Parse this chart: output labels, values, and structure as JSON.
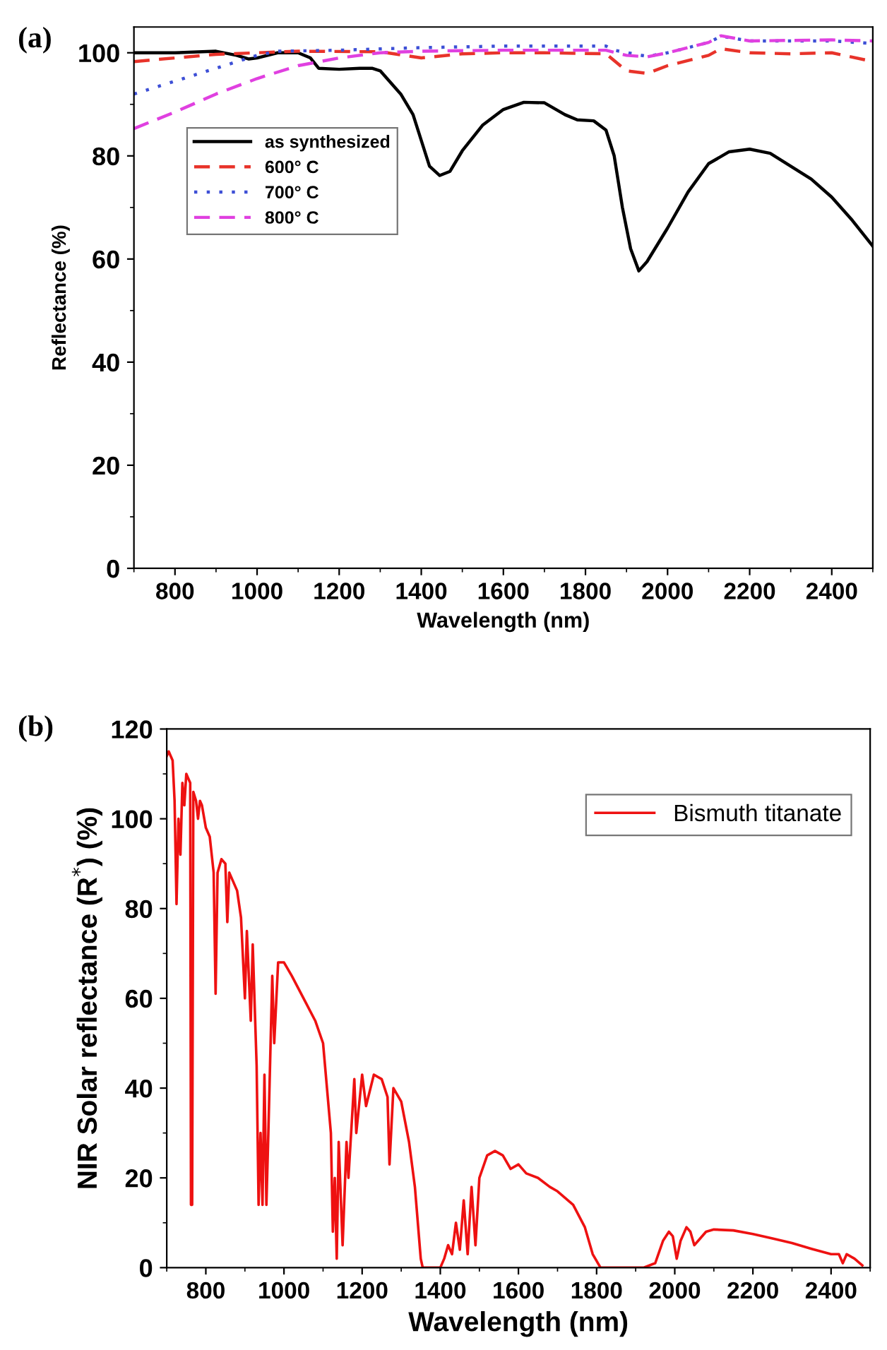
{
  "chart_data": [
    {
      "type": "line",
      "annotations": [
        "(a)"
      ],
      "xlabel": "Wavelength (nm)",
      "ylabel": "Reflectance (%)",
      "xlim": [
        700,
        2500
      ],
      "ylim": [
        0,
        105
      ],
      "xticks": [
        800,
        1000,
        1200,
        1400,
        1600,
        1800,
        2000,
        2200,
        2400
      ],
      "yticks": [
        0,
        20,
        40,
        60,
        80,
        100
      ],
      "legend": "top left",
      "grid": false,
      "series": [
        {
          "name": "as synthesized",
          "color": "#000000",
          "line_style": "solid",
          "x": [
            700,
            800,
            900,
            950,
            980,
            1000,
            1050,
            1100,
            1130,
            1150,
            1200,
            1250,
            1280,
            1300,
            1350,
            1380,
            1400,
            1420,
            1445,
            1470,
            1500,
            1550,
            1600,
            1650,
            1700,
            1750,
            1780,
            1820,
            1850,
            1870,
            1890,
            1910,
            1930,
            1950,
            2000,
            2050,
            2100,
            2150,
            2200,
            2250,
            2300,
            2350,
            2400,
            2450,
            2500
          ],
          "values": [
            100,
            100,
            100.3,
            99.5,
            98.8,
            99,
            100,
            100,
            99,
            97,
            96.8,
            97,
            97,
            96.5,
            92,
            88,
            83,
            78,
            76.2,
            77,
            81,
            86,
            89,
            90.4,
            90.3,
            88,
            87,
            86.8,
            85,
            80,
            70,
            62,
            57.7,
            59.5,
            66,
            73,
            78.5,
            80.8,
            81.3,
            80.5,
            78,
            75.5,
            72,
            67.5,
            62.5
          ]
        },
        {
          "name": "600° C",
          "color": "#e8332a",
          "line_style": "dashed",
          "x": [
            700,
            800,
            900,
            1000,
            1100,
            1300,
            1400,
            1500,
            1600,
            1700,
            1850,
            1900,
            1950,
            2000,
            2100,
            2130,
            2200,
            2300,
            2400,
            2500
          ],
          "values": [
            98.3,
            99,
            99.7,
            100,
            100.3,
            100.2,
            99,
            99.8,
            100,
            100,
            99.8,
            96.5,
            96,
            97.5,
            99.5,
            100.8,
            100,
            99.8,
            100,
            98.3
          ]
        },
        {
          "name": "700° C",
          "color": "#3d4fd6",
          "line_style": "dotted",
          "x": [
            700,
            800,
            900,
            1000,
            1050,
            1200,
            1400,
            1600,
            1850,
            1870,
            1950,
            2000,
            2100,
            2130,
            2200,
            2400,
            2500
          ],
          "values": [
            92,
            94.5,
            97,
            99.5,
            100.3,
            100.5,
            101,
            101.3,
            101.3,
            100.5,
            99.3,
            100,
            102,
            103.2,
            102.3,
            102.3,
            101.8
          ]
        },
        {
          "name": "800° C",
          "color": "#e040e0",
          "line_style": "dashed",
          "x": [
            700,
            800,
            900,
            1000,
            1100,
            1200,
            1300,
            1400,
            1600,
            1850,
            1900,
            1950,
            2000,
            2100,
            2130,
            2200,
            2400,
            2500
          ],
          "values": [
            85.3,
            88.5,
            92,
            95,
            97.5,
            99,
            100,
            100.3,
            100.5,
            100.5,
            99.5,
            99.2,
            100,
            102,
            103.3,
            102.3,
            102.5,
            102.3
          ]
        }
      ]
    },
    {
      "type": "line",
      "annotations": [
        "(b)"
      ],
      "xlabel": "Wavelength (nm)",
      "ylabel": "NIR Solar reflectance (R$^{*}$) (%)",
      "xlim": [
        700,
        2500
      ],
      "ylim": [
        0,
        120
      ],
      "xticks": [
        800,
        1000,
        1200,
        1400,
        1600,
        1800,
        2000,
        2200,
        2400
      ],
      "yticks": [
        0,
        20,
        40,
        60,
        80,
        100,
        120
      ],
      "legend": "top right",
      "grid": false,
      "series": [
        {
          "name": "Bismuth titanate",
          "color": "#ee1111",
          "line_style": "solid",
          "x": [
            700,
            705,
            715,
            720,
            725,
            730,
            735,
            740,
            745,
            750,
            755,
            760,
            762,
            765,
            768,
            775,
            780,
            785,
            790,
            800,
            810,
            820,
            825,
            830,
            840,
            850,
            855,
            860,
            870,
            880,
            890,
            900,
            905,
            915,
            920,
            930,
            935,
            940,
            945,
            950,
            955,
            960,
            970,
            975,
            985,
            1000,
            1020,
            1050,
            1080,
            1100,
            1110,
            1120,
            1125,
            1130,
            1135,
            1140,
            1150,
            1160,
            1165,
            1180,
            1185,
            1200,
            1210,
            1230,
            1250,
            1265,
            1270,
            1280,
            1300,
            1320,
            1335,
            1350,
            1355,
            1400,
            1410,
            1420,
            1430,
            1440,
            1450,
            1460,
            1470,
            1480,
            1490,
            1500,
            1520,
            1540,
            1560,
            1580,
            1600,
            1620,
            1650,
            1680,
            1700,
            1740,
            1770,
            1790,
            1810,
            1850,
            1920,
            1950,
            1970,
            1985,
            1995,
            2005,
            2015,
            2030,
            2040,
            2050,
            2060,
            2080,
            2100,
            2150,
            2200,
            2250,
            2300,
            2350,
            2400,
            2420,
            2430,
            2440,
            2460,
            2480
          ],
          "values": [
            114,
            115,
            113,
            104,
            81,
            100,
            92,
            108,
            103,
            110,
            109,
            108,
            14,
            14,
            106,
            104,
            100,
            104,
            103,
            98,
            96,
            88,
            61,
            88,
            91,
            90,
            77,
            88,
            86,
            84,
            78,
            60,
            75,
            55,
            72,
            45,
            14,
            30,
            14,
            43,
            14,
            30,
            65,
            50,
            68,
            68,
            65,
            60,
            55,
            50,
            40,
            30,
            8,
            20,
            2,
            28,
            5,
            28,
            20,
            42,
            30,
            43,
            36,
            43,
            42,
            38,
            23,
            40,
            37,
            28,
            18,
            2,
            0,
            0,
            2,
            5,
            3,
            10,
            4,
            15,
            3,
            18,
            5,
            20,
            25,
            26,
            25,
            22,
            23,
            21,
            20,
            18,
            17,
            14,
            9,
            3,
            0,
            0,
            0,
            1,
            6,
            8,
            7,
            2,
            6,
            9,
            8,
            5,
            6,
            8,
            8.5,
            8.3,
            7.5,
            6.5,
            5.5,
            4.2,
            3,
            3,
            1,
            3,
            2,
            0.5
          ]
        }
      ]
    }
  ]
}
